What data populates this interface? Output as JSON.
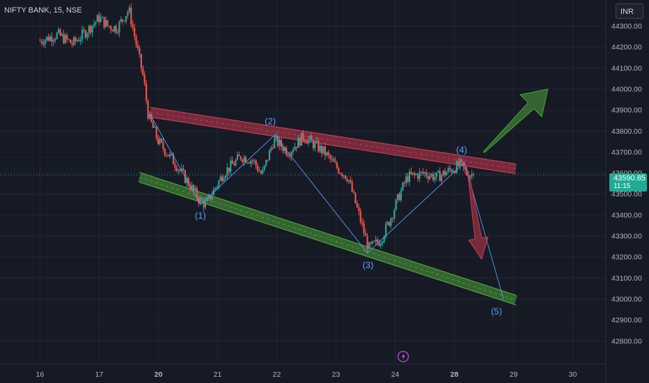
{
  "header": {
    "symbol_title": "NIFTY BANK, 15, NSE",
    "currency": "INR"
  },
  "last_price": {
    "value": "43590.85",
    "countdown": "11:15"
  },
  "colors": {
    "background": "#161a25",
    "grid": "#232632",
    "up_candle": "#26a69a",
    "down_candle": "#ef5350",
    "wave_line": "#5b9cf6",
    "resistance_band": "#c73a52",
    "support_band": "#4fa33a",
    "price_badge": "#22ab94"
  },
  "chart_data": {
    "type": "candlestick",
    "y_axis": {
      "min": 42750,
      "max": 44380,
      "ticks": [
        "44300.00",
        "44200.00",
        "44100.00",
        "44000.00",
        "43900.00",
        "43800.00",
        "43700.00",
        "43600.00",
        "43500.00",
        "43400.00",
        "43300.00",
        "43200.00",
        "43100.00",
        "43000.00",
        "42900.00",
        "42800.00"
      ]
    },
    "x_axis": {
      "ticks": [
        {
          "label": "16",
          "bold": false
        },
        {
          "label": "17",
          "bold": false
        },
        {
          "label": "20",
          "bold": true
        },
        {
          "label": "21",
          "bold": false
        },
        {
          "label": "22",
          "bold": false
        },
        {
          "label": "23",
          "bold": false
        },
        {
          "label": "24",
          "bold": false
        },
        {
          "label": "28",
          "bold": true
        },
        {
          "label": "29",
          "bold": false
        },
        {
          "label": "30",
          "bold": false
        }
      ]
    },
    "price_path": [
      [
        0,
        44230
      ],
      [
        0.3,
        44260
      ],
      [
        0.55,
        44215
      ],
      [
        0.8,
        44280
      ],
      [
        1.0,
        44340
      ],
      [
        1.15,
        44300
      ],
      [
        1.3,
        44290
      ],
      [
        1.5,
        44380
      ],
      [
        1.75,
        44050
      ],
      [
        1.83,
        43870
      ],
      [
        2.0,
        43750
      ],
      [
        2.3,
        43640
      ],
      [
        2.7,
        43470
      ],
      [
        2.8,
        43450
      ],
      [
        3.1,
        43600
      ],
      [
        3.4,
        43680
      ],
      [
        3.6,
        43660
      ],
      [
        3.75,
        43590
      ],
      [
        3.95,
        43760
      ],
      [
        4.2,
        43700
      ],
      [
        4.45,
        43775
      ],
      [
        4.8,
        43700
      ],
      [
        5.0,
        43630
      ],
      [
        5.2,
        43580
      ],
      [
        5.4,
        43390
      ],
      [
        5.55,
        43240
      ],
      [
        5.75,
        43280
      ],
      [
        5.9,
        43370
      ],
      [
        6.05,
        43480
      ],
      [
        6.2,
        43580
      ],
      [
        6.5,
        43600
      ],
      [
        6.7,
        43580
      ],
      [
        6.9,
        43610
      ],
      [
        7.1,
        43640
      ],
      [
        7.2,
        43600
      ],
      [
        7.35,
        43590
      ]
    ],
    "last_price": 43590.85,
    "wave_points": [
      {
        "label": "",
        "x": 1.86,
        "y": 43880
      },
      {
        "label": "(1)",
        "x": 2.71,
        "y": 43450
      },
      {
        "label": "(2)",
        "x": 3.96,
        "y": 43780
      },
      {
        "label": "(3)",
        "x": 5.53,
        "y": 43220
      },
      {
        "label": "(4)",
        "x": 7.17,
        "y": 43650
      },
      {
        "label": "(5)",
        "x": 7.83,
        "y": 43000
      }
    ],
    "channels": [
      {
        "name": "resistance",
        "from": {
          "x": 1.86,
          "y": 43890
        },
        "to": {
          "x": 8.04,
          "y": 43620
        }
      },
      {
        "name": "support",
        "from": {
          "x": 1.68,
          "y": 43580
        },
        "to": {
          "x": 8.04,
          "y": 42995
        }
      }
    ],
    "arrows": [
      {
        "direction": "up",
        "from": {
          "x": 7.5,
          "y": 43700
        },
        "to": {
          "x": 8.58,
          "y": 44000
        }
      },
      {
        "direction": "down",
        "from": {
          "x": 7.24,
          "y": 43590
        },
        "to": {
          "x": 7.46,
          "y": 43190
        }
      }
    ]
  }
}
